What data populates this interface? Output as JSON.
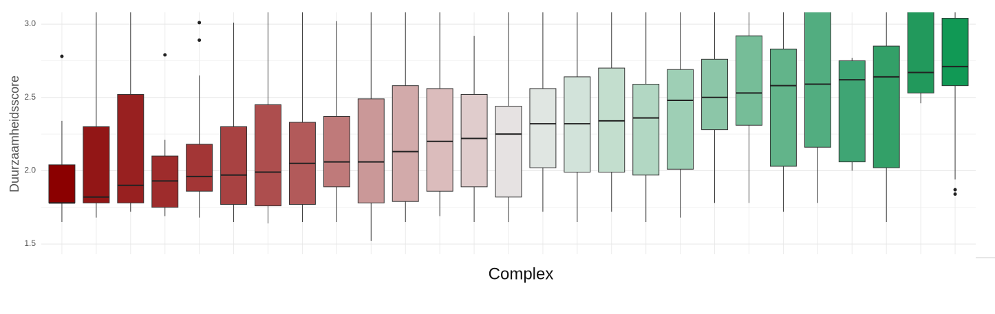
{
  "chart_data": {
    "type": "boxplot",
    "y_label": "Duurzaamheidsscore",
    "x_label": "Complex",
    "categories": [
      null,
      null,
      null,
      null,
      null,
      null,
      null,
      null,
      null,
      null,
      null,
      null,
      null,
      null,
      null,
      null,
      null,
      null,
      null,
      null,
      null,
      null,
      null,
      null,
      null,
      null,
      null
    ],
    "low": [
      1.65,
      1.68,
      1.72,
      1.69,
      1.68,
      1.65,
      1.64,
      1.65,
      1.65,
      1.52,
      1.65,
      1.69,
      1.65,
      1.65,
      1.72,
      1.65,
      1.72,
      1.65,
      1.68,
      1.78,
      1.78,
      1.72,
      1.78,
      2.0,
      1.65,
      2.46,
      1.94
    ],
    "q1": [
      1.78,
      1.78,
      1.78,
      1.75,
      1.86,
      1.77,
      1.76,
      1.77,
      1.89,
      1.78,
      1.79,
      1.86,
      1.89,
      1.82,
      2.02,
      1.99,
      1.99,
      1.97,
      2.01,
      2.28,
      2.31,
      2.03,
      2.16,
      2.06,
      2.02,
      2.53,
      2.58
    ],
    "median": [
      1.78,
      1.82,
      1.9,
      1.93,
      1.96,
      1.97,
      1.99,
      2.05,
      2.06,
      2.06,
      2.13,
      2.2,
      2.22,
      2.25,
      2.32,
      2.32,
      2.34,
      2.36,
      2.48,
      2.5,
      2.53,
      2.58,
      2.59,
      2.62,
      2.64,
      2.67,
      2.71
    ],
    "q3": [
      2.04,
      2.3,
      2.52,
      2.1,
      2.18,
      2.3,
      2.45,
      2.33,
      2.37,
      2.49,
      2.58,
      2.56,
      2.52,
      2.44,
      2.56,
      2.64,
      2.7,
      2.59,
      2.69,
      2.76,
      2.92,
      2.83,
      3.1,
      2.75,
      2.85,
      3.1,
      3.04
    ],
    "high": [
      2.34,
      3.1,
      3.1,
      2.21,
      2.65,
      3.01,
      3.1,
      3.1,
      3.02,
      3.1,
      3.1,
      3.1,
      2.92,
      3.1,
      3.1,
      3.1,
      3.1,
      3.1,
      3.1,
      3.1,
      3.1,
      3.1,
      3.2,
      2.77,
      3.1,
      3.2,
      3.1
    ],
    "outliers": [
      [
        2.78
      ],
      [],
      [],
      [
        2.79
      ],
      [
        3.01,
        2.89
      ],
      [],
      [],
      [],
      [],
      [],
      [],
      [],
      [],
      [],
      [],
      [],
      [],
      [],
      [],
      [],
      [],
      [],
      [],
      [],
      [],
      [],
      [
        1.87,
        1.84
      ]
    ],
    "colors": [
      "#8b0000",
      "#921616",
      "#982020",
      "#9e2c2c",
      "#a33636",
      "#a84242",
      "#ad4e4e",
      "#b25a5a",
      "#bf7a7a",
      "#ca9898",
      "#d2aaaa",
      "#dbbcbc",
      "#e0cccc",
      "#e6e2e2",
      "#e0e6e2",
      "#d2e3da",
      "#c3dece",
      "#b2d7c3",
      "#9ecfb5",
      "#8cc6a8",
      "#76bd98",
      "#62b48a",
      "#52ad80",
      "#3fa574",
      "#33a068",
      "#22995c",
      "#119955"
    ],
    "ylim": [
      1.43,
      3.08
    ],
    "yticks": [
      1.5,
      {
        "value": 2.0,
        "label": "2.0"
      },
      2.5,
      {
        "value": 3.0,
        "label": "3.0"
      }
    ],
    "minor_yticks": [
      1.75,
      2.25,
      2.75
    ],
    "grid": true
  }
}
